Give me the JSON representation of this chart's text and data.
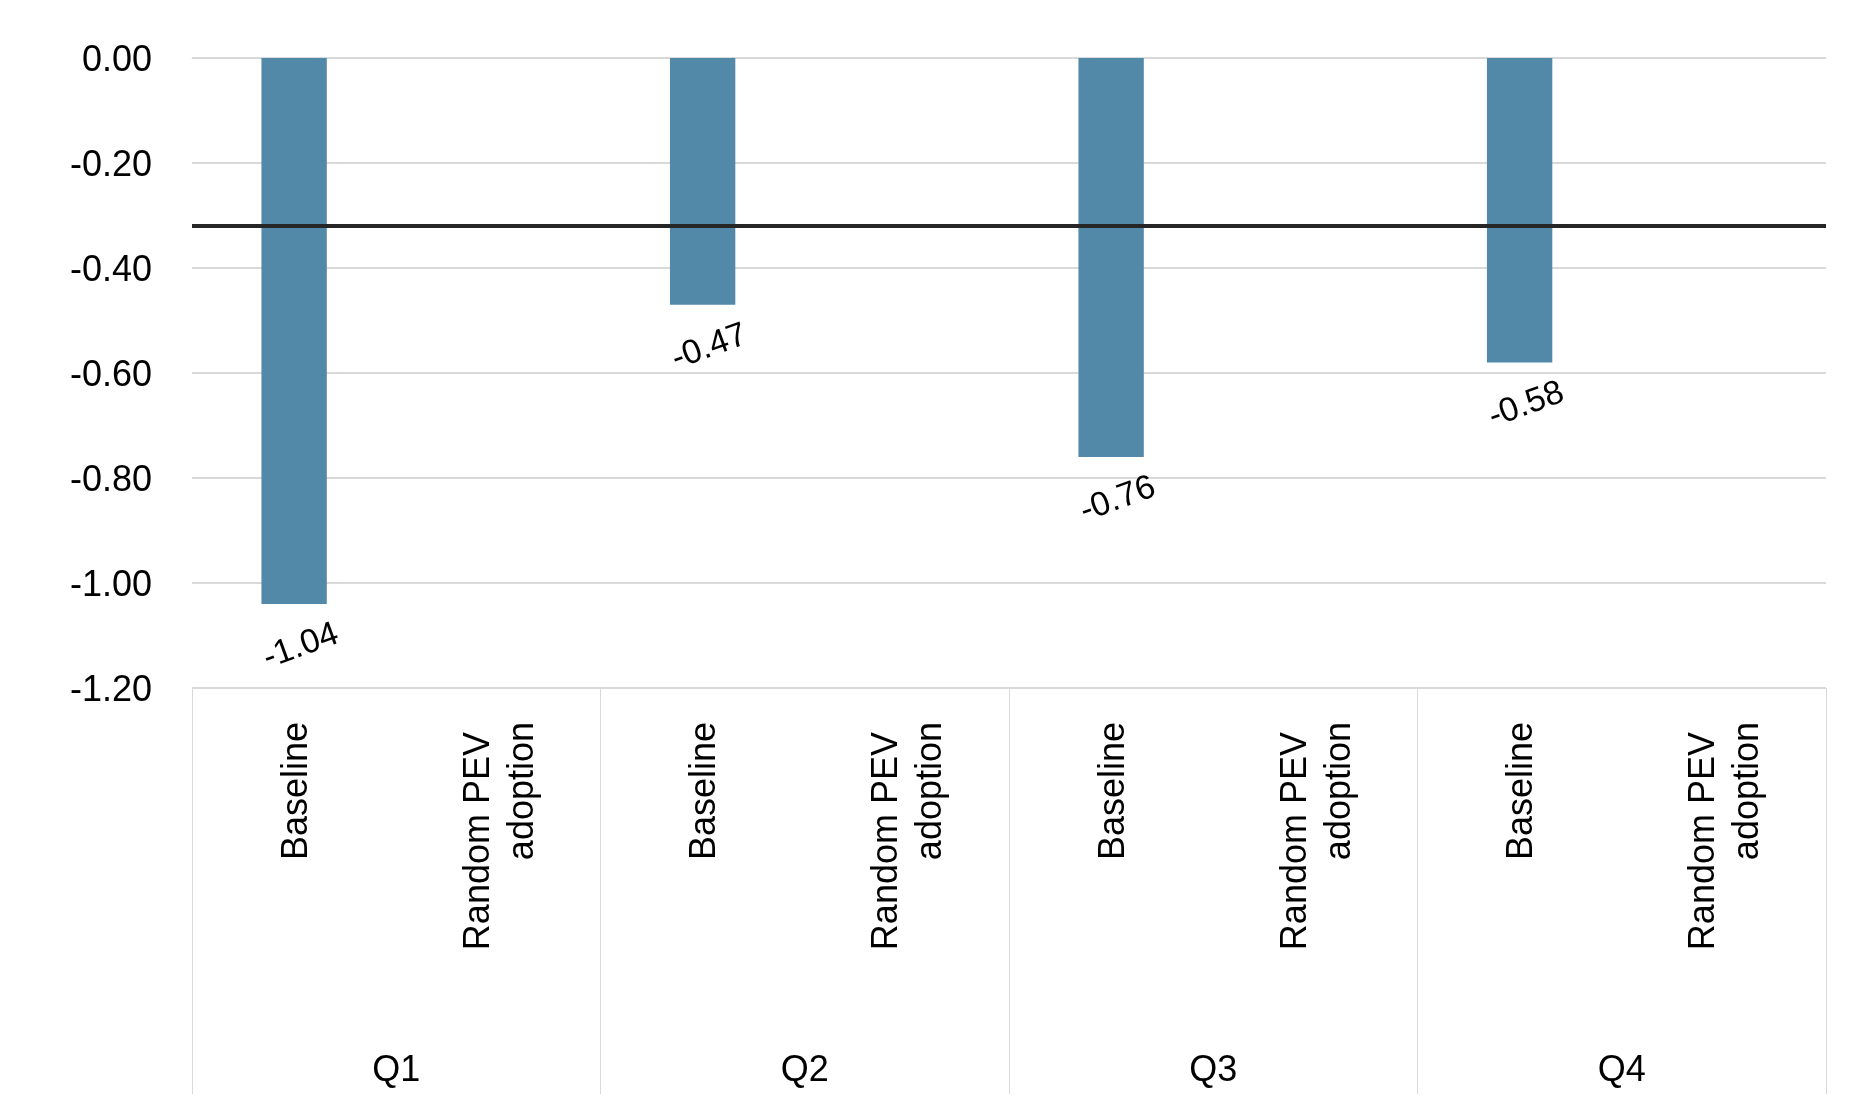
{
  "chart_data": {
    "type": "bar",
    "categories": [
      "Baseline",
      "Random PEV adoption",
      "Baseline",
      "Random PEV adoption",
      "Baseline",
      "Random PEV adoption",
      "Baseline",
      "Random PEV adoption"
    ],
    "values": [
      -1.04,
      null,
      -0.47,
      null,
      -0.76,
      null,
      -0.58,
      null
    ],
    "color": "#5288a8",
    "ylim": [
      -1.2,
      0
    ],
    "yticks": [
      {
        "value": -1.2,
        "label": "-1.20"
      },
      {
        "value": -1.0,
        "label": "-1.00"
      },
      {
        "value": -0.8,
        "label": "-0.80"
      },
      {
        "value": -0.6,
        "label": "-0.60"
      },
      {
        "value": -0.4,
        "label": "-0.40"
      },
      {
        "value": -0.2,
        "label": "-0.20"
      },
      {
        "value": 0,
        "label": "0.00"
      }
    ],
    "ref_lines": [
      {
        "axis": "y",
        "value": -0.32,
        "color": "#262626"
      }
    ],
    "annotations": [
      "Q1",
      "Q2",
      "Q3",
      "Q4"
    ],
    "data_labels": true,
    "grid": "y"
  }
}
